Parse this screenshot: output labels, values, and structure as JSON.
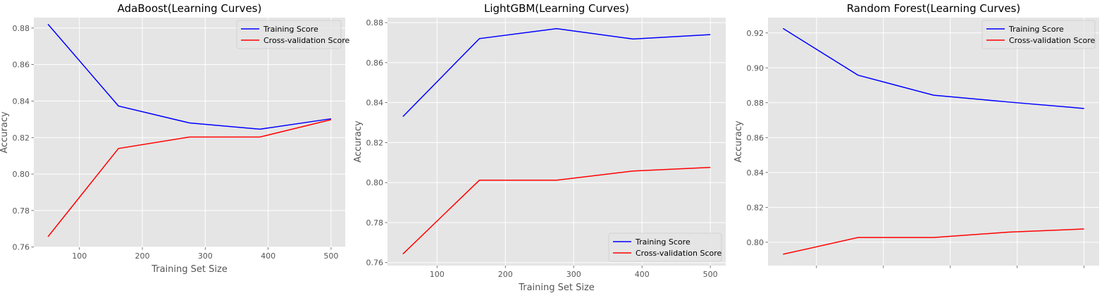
{
  "chart_data": [
    {
      "type": "line",
      "title": "AdaBoost(Learning Curves)",
      "xlabel": "Training Set Size",
      "ylabel": "Accuracy",
      "x": [
        50,
        162,
        275,
        387,
        500
      ],
      "xlim": [
        27.5,
        522.5
      ],
      "ylim": [
        0.7599,
        0.8857
      ],
      "xticks": [
        100,
        200,
        300,
        400,
        500
      ],
      "xtick_labels": [
        "100",
        "200",
        "300",
        "400",
        "500"
      ],
      "yticks": [
        0.76,
        0.78,
        0.8,
        0.82,
        0.84,
        0.86,
        0.88
      ],
      "ytick_labels": [
        "0.76",
        "0.78",
        "0.80",
        "0.82",
        "0.84",
        "0.86",
        "0.88"
      ],
      "legend_position": "top-right",
      "grid": true,
      "series": [
        {
          "name": "Training Score",
          "color": "#0000ff",
          "values": [
            0.8821,
            0.8373,
            0.828,
            0.8246,
            0.8303
          ]
        },
        {
          "name": "Cross-validation Score",
          "color": "#ff0000",
          "values": [
            0.7657,
            0.814,
            0.8203,
            0.8203,
            0.8298
          ]
        }
      ]
    },
    {
      "type": "line",
      "title": "LightGBM(Learning Curves)",
      "xlabel": "Training Set Size",
      "ylabel": "Accuracy",
      "x": [
        50,
        162,
        275,
        387,
        500
      ],
      "xlim": [
        27.5,
        522.5
      ],
      "ylim": [
        0.7585,
        0.8825
      ],
      "xticks": [
        100,
        200,
        300,
        400,
        500
      ],
      "xtick_labels": [
        "100",
        "200",
        "300",
        "400",
        "500"
      ],
      "yticks": [
        0.76,
        0.78,
        0.8,
        0.82,
        0.84,
        0.86,
        0.88
      ],
      "ytick_labels": [
        "0.76",
        "0.78",
        "0.80",
        "0.82",
        "0.84",
        "0.86",
        "0.88"
      ],
      "legend_position": "bottom-right",
      "grid": true,
      "series": [
        {
          "name": "Training Score",
          "color": "#0000ff",
          "values": [
            0.833,
            0.872,
            0.877,
            0.8718,
            0.874
          ]
        },
        {
          "name": "Cross-validation Score",
          "color": "#ff0000",
          "values": [
            0.7643,
            0.8012,
            0.8012,
            0.8058,
            0.8076
          ]
        }
      ]
    },
    {
      "type": "line",
      "title": "Random Forest(Learning Curves)",
      "xlabel": "",
      "ylabel": "Accuracy",
      "x": [
        50,
        162,
        275,
        387,
        500
      ],
      "xlim": [
        27.5,
        522.5
      ],
      "ylim": [
        0.7866,
        0.9288
      ],
      "xticks": [
        100,
        200,
        300,
        400,
        500
      ],
      "xtick_labels": [
        "",
        "",
        "",
        "",
        ""
      ],
      "yticks": [
        0.8,
        0.82,
        0.84,
        0.86,
        0.88,
        0.9,
        0.92
      ],
      "ytick_labels": [
        "0.80",
        "0.82",
        "0.84",
        "0.86",
        "0.88",
        "0.90",
        "0.92"
      ],
      "legend_position": "top-right",
      "grid": true,
      "series": [
        {
          "name": "Training Score",
          "color": "#0000ff",
          "values": [
            0.9226,
            0.8958,
            0.8843,
            0.8804,
            0.8767
          ]
        },
        {
          "name": "Cross-validation Score",
          "color": "#ff0000",
          "values": [
            0.7931,
            0.8027,
            0.8027,
            0.8058,
            0.8076
          ]
        }
      ]
    }
  ]
}
